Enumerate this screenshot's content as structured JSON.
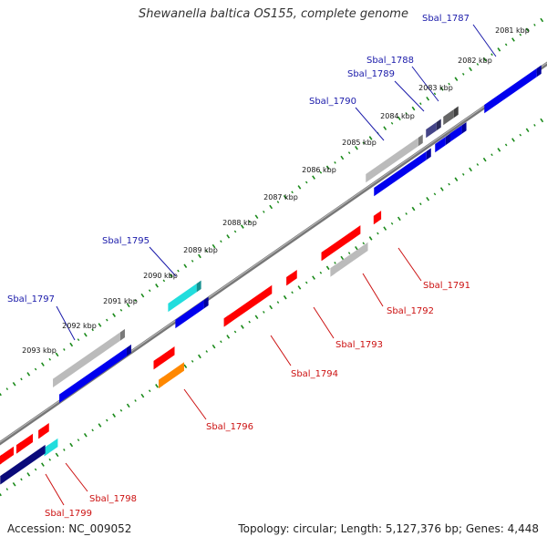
{
  "title": "Shewanella baltica OS155, complete genome",
  "footer": {
    "accession": "Accession: NC_009052",
    "summary": "Topology: circular; Length: 5,127,376 bp; Genes: 4,448"
  },
  "colors": {
    "backbone": "#777777",
    "forward_label": "#1a1aaa",
    "reverse_label": "#cc1111",
    "tick_dotted": "#1a8a1a",
    "red": "#ff0000",
    "blue": "#0000ee",
    "navy": "#0a0a7a",
    "grey": "#bbbbbb",
    "dark_grey": "#666666",
    "slate": "#444488",
    "cyan": "#22dddd",
    "orange": "#ff8800"
  },
  "kbp_labels": [
    "2081 kbp",
    "2082 kbp",
    "2083 kbp",
    "2084 kbp",
    "2085 kbp",
    "2086 kbp",
    "2087 kbp",
    "2088 kbp",
    "2089 kbp",
    "2090 kbp",
    "2091 kbp",
    "2092 kbp",
    "2093 kbp"
  ],
  "genes": [
    {
      "label": "Sbal_1787",
      "strand": "forward",
      "color": "blue"
    },
    {
      "label": "Sbal_1788",
      "strand": "forward",
      "color": "dark_grey"
    },
    {
      "label": "Sbal_1789",
      "strand": "forward",
      "color": "slate"
    },
    {
      "label": "Sbal_1790",
      "strand": "forward",
      "color": "grey"
    },
    {
      "label": "Sbal_1791",
      "strand": "reverse",
      "color": "red"
    },
    {
      "label": "Sbal_1792",
      "strand": "reverse",
      "color": "grey"
    },
    {
      "label": "Sbal_1793",
      "strand": "reverse",
      "color": "red"
    },
    {
      "label": "Sbal_1794",
      "strand": "reverse",
      "color": "red"
    },
    {
      "label": "Sbal_1795",
      "strand": "forward",
      "color": "cyan"
    },
    {
      "label": "Sbal_1796",
      "strand": "reverse",
      "color": "orange"
    },
    {
      "label": "Sbal_1797",
      "strand": "forward",
      "color": "grey"
    },
    {
      "label": "Sbal_1798",
      "strand": "reverse",
      "color": "cyan"
    },
    {
      "label": "Sbal_1799",
      "strand": "reverse",
      "color": "navy"
    }
  ]
}
